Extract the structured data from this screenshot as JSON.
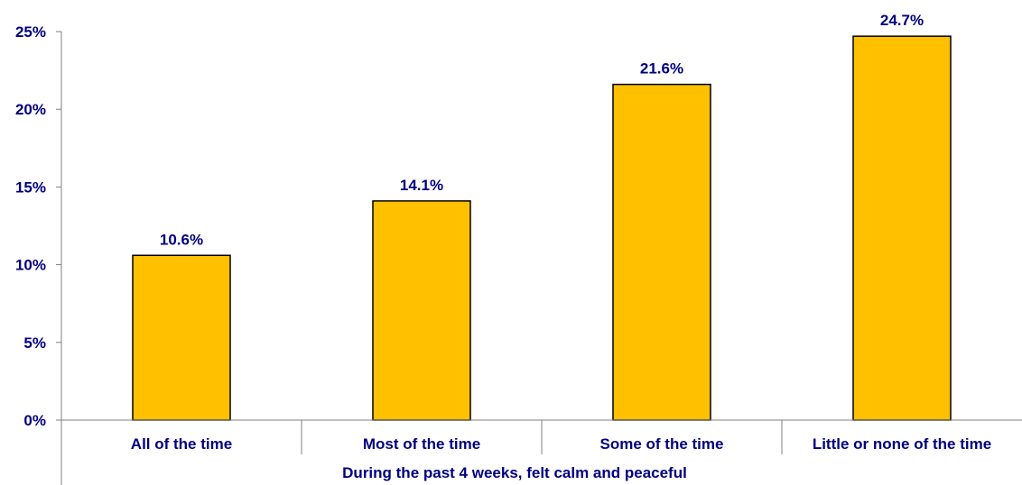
{
  "chart_data": {
    "type": "bar",
    "categories": [
      "All of the time",
      "Most of the time",
      "Some of the time",
      "Little or none of the time"
    ],
    "values": [
      10.6,
      14.1,
      21.6,
      24.7
    ],
    "data_labels": [
      "10.6%",
      "14.1%",
      "21.6%",
      "24.7%"
    ],
    "xlabel": "During the past 4 weeks, felt calm and peaceful",
    "ylabel": "",
    "ylim": [
      0,
      25
    ],
    "yticks": [
      0,
      5,
      10,
      15,
      20,
      25
    ],
    "ytick_labels": [
      "0%",
      "5%",
      "10%",
      "15%",
      "20%",
      "25%"
    ],
    "grid": false,
    "legend": "none",
    "colors": {
      "bar_fill": "#FFC000",
      "bar_stroke": "#000000",
      "text": "#000080",
      "axis": "#808080"
    }
  }
}
